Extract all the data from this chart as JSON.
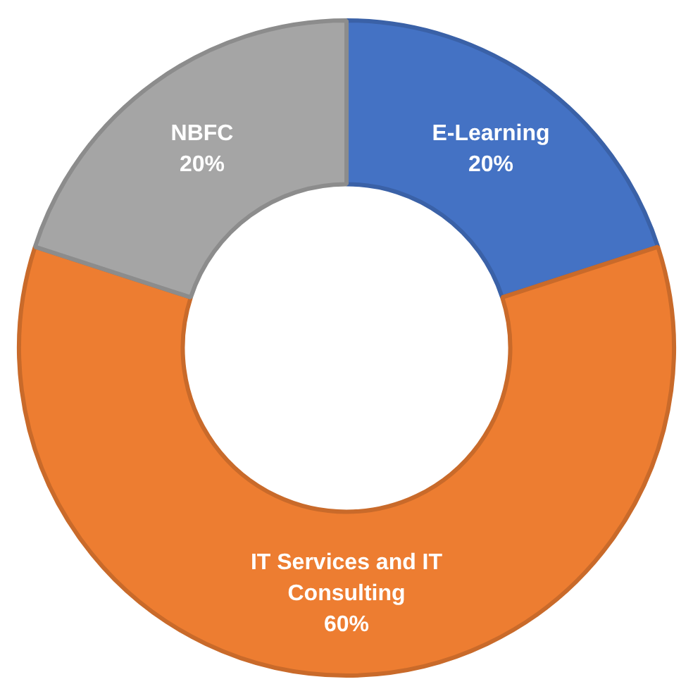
{
  "chart_data": {
    "type": "donut",
    "categories": [
      "E-Learning",
      "IT Services and IT Consulting",
      "NBFC"
    ],
    "values": [
      20,
      60,
      20
    ],
    "value_labels": [
      "20%",
      "60%",
      "20%"
    ],
    "colors": [
      "#4472c4",
      "#ed7d31",
      "#a5a5a5"
    ],
    "legend": false
  }
}
